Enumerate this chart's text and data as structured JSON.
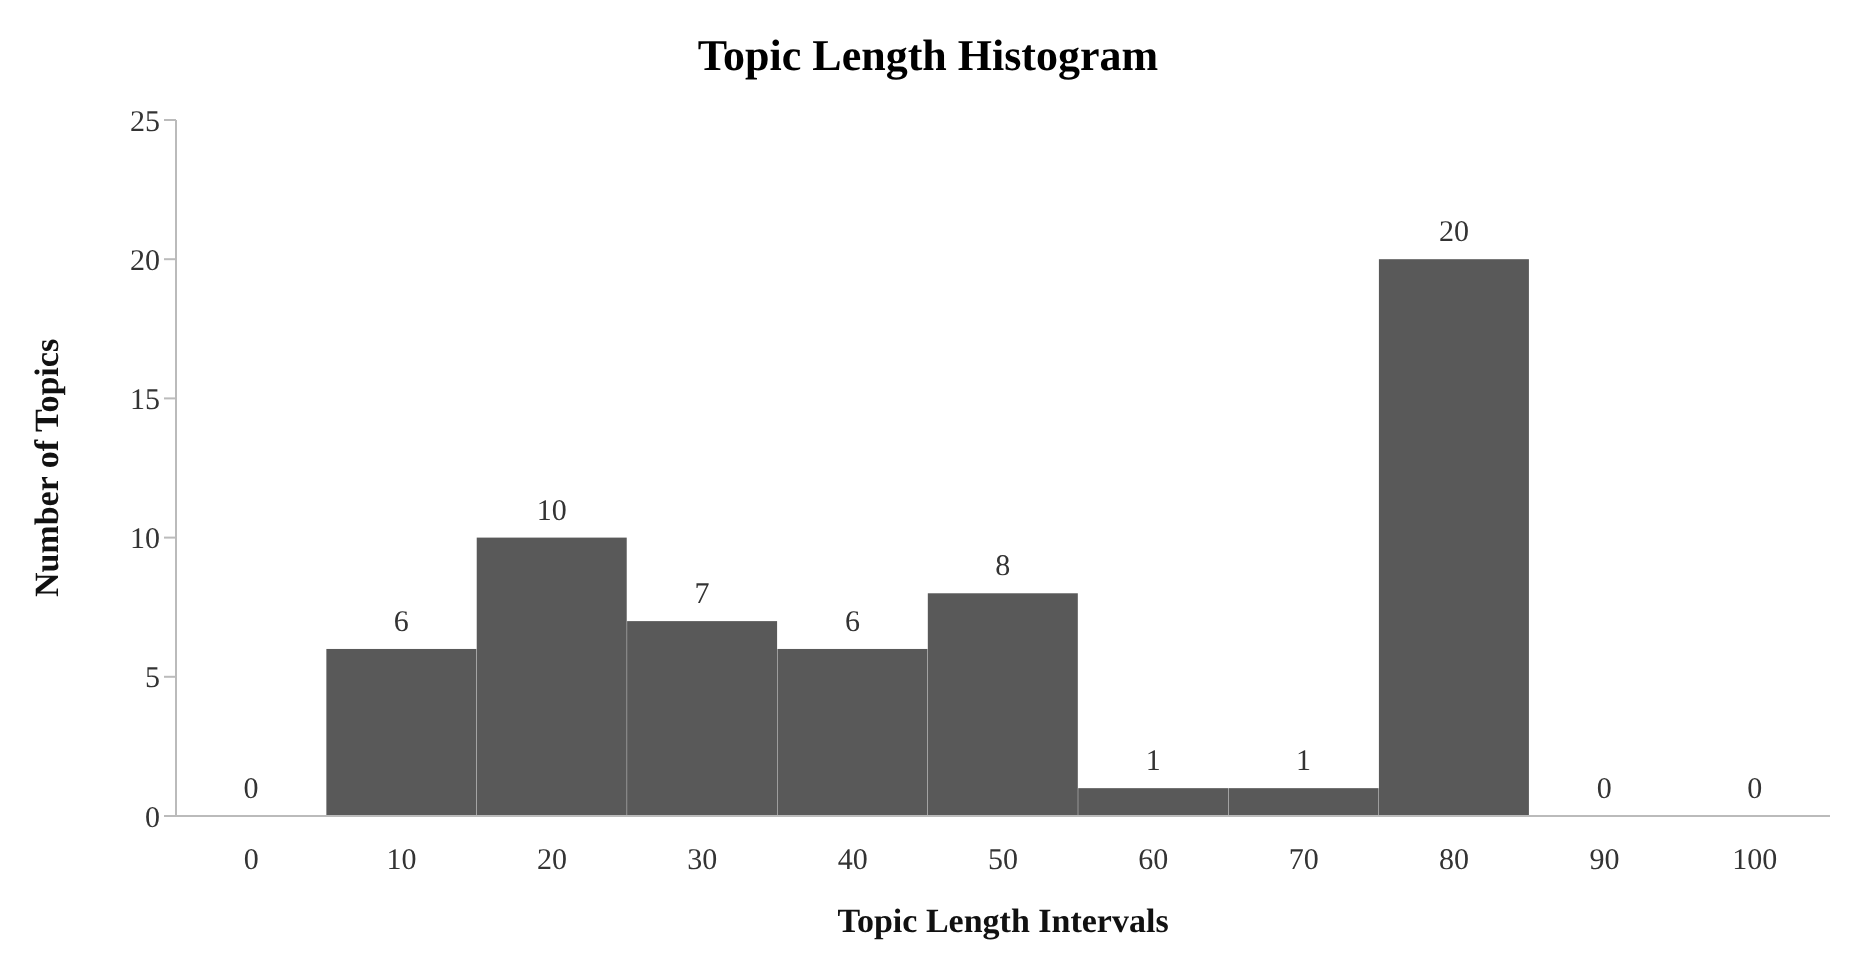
{
  "chart_data": {
    "type": "bar",
    "title": "Topic Length Histogram",
    "xlabel": "Topic Length Intervals",
    "ylabel": "Number of Topics",
    "categories": [
      "0",
      "10",
      "20",
      "30",
      "40",
      "50",
      "60",
      "70",
      "80",
      "90",
      "100"
    ],
    "values": [
      0,
      6,
      10,
      7,
      6,
      8,
      1,
      1,
      20,
      0,
      0
    ],
    "color": "#595959",
    "ylim": [
      0,
      25
    ],
    "yticks": [
      0,
      5,
      10,
      15,
      20,
      25
    ],
    "grid": false,
    "data_labels": true,
    "legend": false
  }
}
